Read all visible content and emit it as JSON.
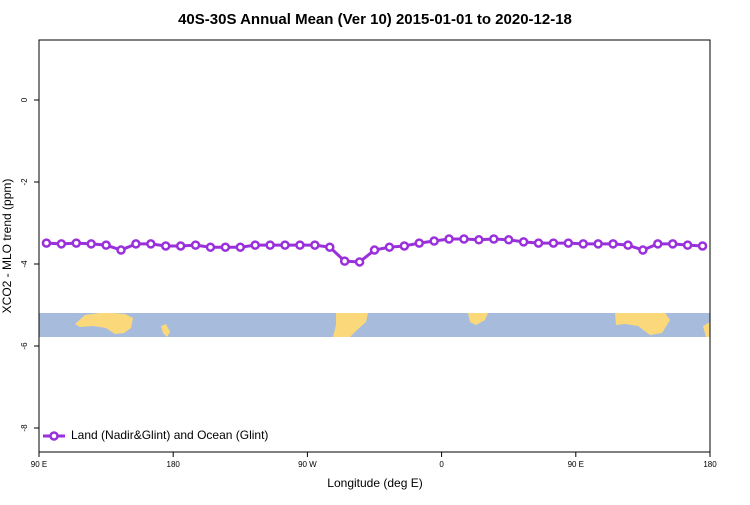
{
  "chart_data": {
    "type": "line",
    "title": "40S-30S Annual Mean (Ver 10)   2015-01-01 to 2020-12-18",
    "x_label": "Longitude (deg E)",
    "y_label": "XCO2 - MLO trend (ppm)",
    "xlim": [
      90,
      540
    ],
    "ylim": [
      -8.585,
      1.463
    ],
    "xticks": [
      {
        "value": 90,
        "label": "90 E"
      },
      {
        "value": 180,
        "label": "180"
      },
      {
        "value": 270,
        "label": "90 W"
      },
      {
        "value": 360,
        "label": "0"
      },
      {
        "value": 450,
        "label": "90 E"
      },
      {
        "value": 540,
        "label": "180"
      }
    ],
    "yticks": [
      0,
      -2,
      -4,
      -6,
      -8
    ],
    "legend_position": "bottom-left",
    "x": [
      95,
      105,
      115,
      125,
      135,
      145,
      155,
      165,
      175,
      185,
      195,
      205,
      215,
      225,
      235,
      245,
      255,
      265,
      275,
      285,
      295,
      305,
      315,
      325,
      335,
      345,
      355,
      365,
      375,
      385,
      395,
      405,
      415,
      425,
      435,
      445,
      455,
      465,
      475,
      485,
      495,
      505,
      515,
      525,
      535
    ],
    "series": [
      {
        "name": "Land (Nadir&Glint) and Ocean (Glint)",
        "color": "#9a30dc",
        "values": [
          -3.49,
          -3.51,
          -3.49,
          -3.51,
          -3.54,
          -3.66,
          -3.51,
          -3.51,
          -3.56,
          -3.56,
          -3.54,
          -3.59,
          -3.59,
          -3.59,
          -3.54,
          -3.54,
          -3.54,
          -3.54,
          -3.54,
          -3.59,
          -3.93,
          -3.95,
          -3.66,
          -3.59,
          -3.56,
          -3.49,
          -3.44,
          -3.39,
          -3.39,
          -3.41,
          -3.39,
          -3.41,
          -3.46,
          -3.49,
          -3.49,
          -3.49,
          -3.51,
          -3.51,
          -3.51,
          -3.54,
          -3.66,
          -3.51,
          -3.51,
          -3.54,
          -3.56
        ]
      }
    ]
  }
}
